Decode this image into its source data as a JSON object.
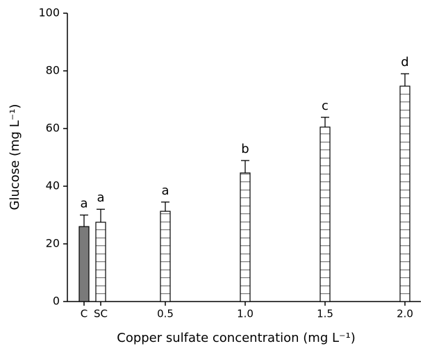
{
  "chart_data": {
    "type": "bar",
    "x_label": "Copper sulfate concentration (mg L⁻¹)",
    "y_label": "Glucose (mg L⁻¹)",
    "categories": [
      "C",
      "SC",
      "0.5",
      "1.0",
      "1.5",
      "2.0"
    ],
    "values": [
      26,
      27.5,
      31.3,
      44.6,
      60.5,
      74.7
    ],
    "errors": [
      4,
      4.5,
      3.2,
      4.3,
      3.4,
      4.3
    ],
    "significance_letters": [
      "a",
      "a",
      "a",
      "b",
      "c",
      "d"
    ],
    "bar_styles": [
      "solid",
      "hatched",
      "hatched",
      "hatched",
      "hatched",
      "hatched"
    ],
    "color": "#7a7a7a",
    "ylim": [
      0,
      100
    ],
    "yticks": [
      0,
      20,
      40,
      60,
      80,
      100
    ]
  }
}
